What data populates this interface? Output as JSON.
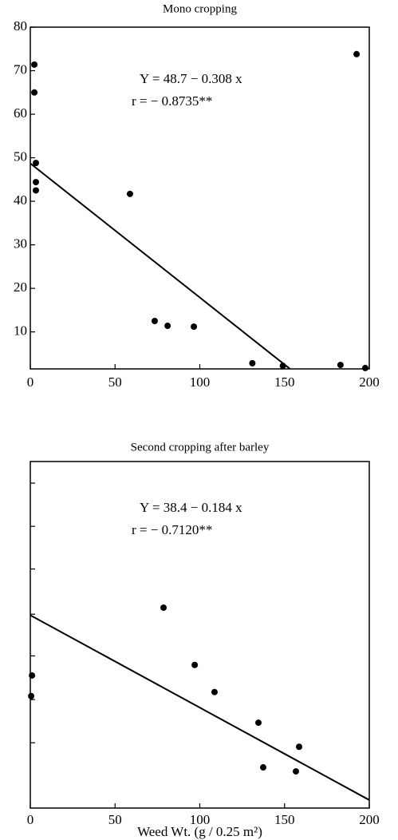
{
  "chart_data": [
    {
      "type": "scatter",
      "title": "Mono cropping",
      "annotations": [
        "Y = 48.7 − 0.308 x",
        "r = − 0.8735**"
      ],
      "x": [
        2.4,
        2.4,
        3.3,
        3.3,
        3.3,
        58.8,
        73.4,
        81,
        96.5,
        131,
        149,
        183,
        192.5,
        197.6
      ],
      "y": [
        71.4,
        65,
        48.8,
        44.4,
        42.5,
        41.7,
        12.5,
        11.4,
        11.2,
        2.8,
        2.2,
        2.4,
        73.8,
        1.7
      ],
      "trend_line": {
        "x": [
          0,
          158.1
        ],
        "y": [
          48.7,
          0
        ]
      },
      "color": "#000000",
      "xlim": [
        0,
        200
      ],
      "xticks": [
        0,
        50,
        100,
        150,
        200
      ],
      "ylim": [
        1.5,
        80
      ],
      "yticks": [
        10,
        20,
        30,
        40,
        50,
        60,
        70,
        80
      ],
      "ytick_labels": true
    },
    {
      "type": "scatter",
      "title": "Second cropping after barley",
      "annotations": [
        "Y = 38.4 − 0.184 x",
        "r = − 0.7120**"
      ],
      "xlabel": "Weed Wt. (g / 0.25 m²)",
      "x": [
        1,
        0.5,
        78.6,
        97,
        108.7,
        134.6,
        137.4,
        156.7,
        158.6
      ],
      "y": [
        26.4,
        22.3,
        39.9,
        28.5,
        23.1,
        17,
        8.1,
        7.3,
        12.2
      ],
      "trend_line": {
        "x": [
          0,
          200
        ],
        "y": [
          38.4,
          1.6
        ]
      },
      "color": "#000000",
      "xlim": [
        0,
        200
      ],
      "xticks": [
        0,
        50,
        100,
        150,
        200
      ],
      "ylim": [
        0,
        69
      ],
      "yticks": [
        13,
        21.6,
        30.3,
        38.6,
        47.6,
        56.1,
        64.7
      ],
      "ytick_labels": false
    }
  ]
}
